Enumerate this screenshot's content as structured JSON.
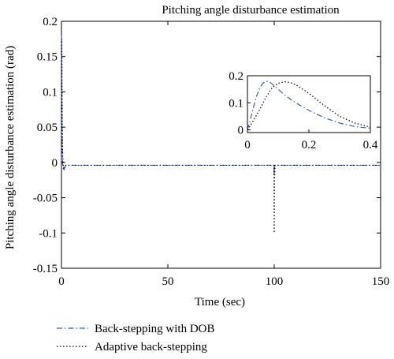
{
  "chart_data": {
    "type": "line",
    "title": "Pitching angle disturbance estimation",
    "xlabel": "Time (sec)",
    "ylabel": "Pitching angle disturbance estimation (rad)",
    "xlim": [
      0,
      150
    ],
    "ylim": [
      -0.15,
      0.2
    ],
    "xticks": [
      "0",
      "50",
      "100",
      "150"
    ],
    "yticks": [
      "0.2",
      "0.15",
      "0.1",
      "0.05",
      "0",
      "-0.05",
      "-0.1",
      "-0.15"
    ],
    "grid": false,
    "legend_position": "bottom-left, below plot",
    "series": [
      {
        "name": "Back-stepping with DOB",
        "color": "#3a5fb0",
        "style": "dash-dot",
        "x": [
          0,
          0.02,
          0.05,
          0.08,
          0.12,
          0.2,
          0.3,
          0.4,
          0.6,
          1,
          2,
          10,
          50,
          99.8,
          100,
          100.1,
          100.3,
          101,
          110,
          150
        ],
        "y": [
          0,
          0.12,
          0.18,
          0.17,
          0.12,
          0.07,
          0.035,
          0.02,
          -0.005,
          -0.012,
          -0.004,
          -0.004,
          -0.004,
          -0.004,
          -0.018,
          -0.004,
          -0.004,
          -0.004,
          -0.004,
          -0.004
        ]
      },
      {
        "name": "Adaptive back-stepping",
        "color": "#000000",
        "style": "dotted",
        "x": [
          0,
          0.05,
          0.1,
          0.12,
          0.2,
          0.3,
          0.4,
          0.6,
          1,
          2,
          10,
          50,
          99.9,
          100,
          100.1,
          100.4,
          101,
          110,
          150
        ],
        "y": [
          0,
          0.13,
          0.17,
          0.175,
          0.15,
          0.1,
          0.055,
          0.01,
          -0.008,
          -0.004,
          -0.004,
          -0.004,
          -0.004,
          -0.1,
          -0.03,
          -0.004,
          -0.004,
          -0.004,
          -0.004
        ]
      }
    ],
    "inset": {
      "xlim": [
        0,
        0.4
      ],
      "ylim": [
        -0.01,
        0.2
      ],
      "xticks": [
        "0",
        "0.2",
        "0.4"
      ],
      "yticks": [
        "0.2",
        "0.1",
        "0"
      ],
      "series": [
        {
          "name": "Back-stepping with DOB",
          "x": [
            0,
            0.01,
            0.02,
            0.03,
            0.04,
            0.05,
            0.06,
            0.07,
            0.08,
            0.1,
            0.12,
            0.15,
            0.18,
            0.2,
            0.25,
            0.3,
            0.35,
            0.4
          ],
          "y": [
            0,
            0.04,
            0.085,
            0.125,
            0.155,
            0.172,
            0.18,
            0.178,
            0.17,
            0.15,
            0.13,
            0.105,
            0.085,
            0.072,
            0.045,
            0.025,
            0.012,
            0.006
          ]
        },
        {
          "name": "Adaptive back-stepping",
          "x": [
            0,
            0.02,
            0.04,
            0.06,
            0.08,
            0.1,
            0.12,
            0.14,
            0.16,
            0.2,
            0.25,
            0.3,
            0.35,
            0.4
          ],
          "y": [
            0,
            0.035,
            0.075,
            0.12,
            0.155,
            0.172,
            0.178,
            0.175,
            0.165,
            0.135,
            0.09,
            0.05,
            0.025,
            0.01
          ]
        }
      ]
    }
  }
}
